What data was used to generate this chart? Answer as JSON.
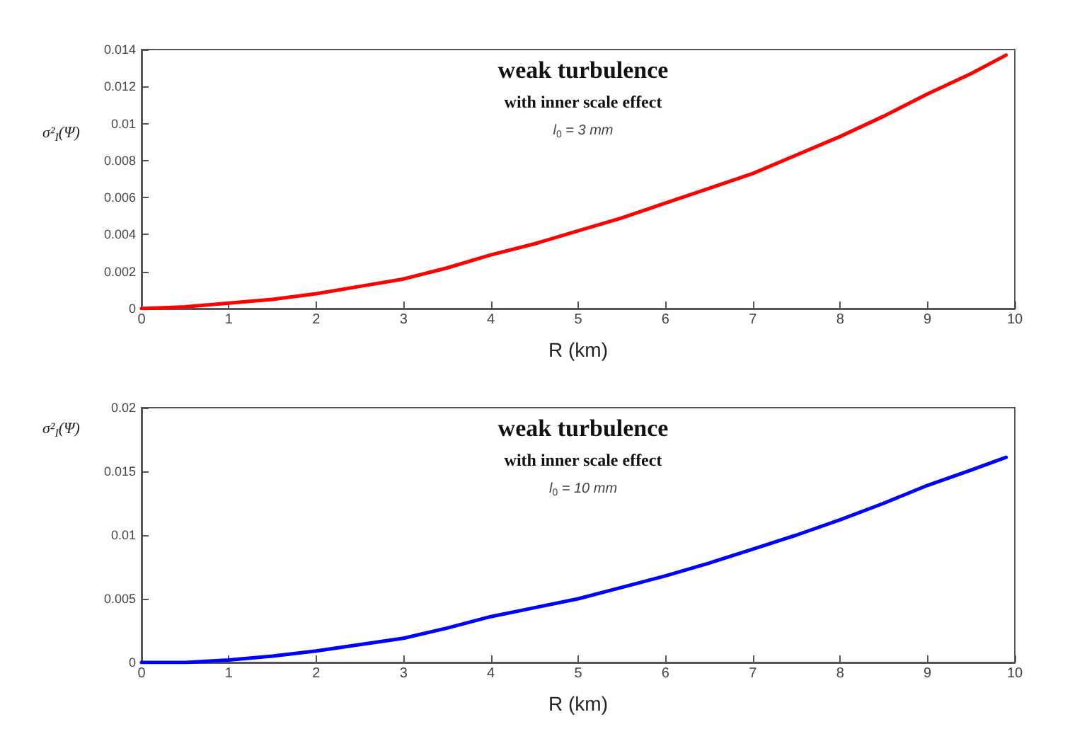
{
  "chart_data": [
    {
      "type": "line",
      "xlabel": "R (km)",
      "ylabel": "σ²$_{I}$(Ψ)",
      "annotations": [
        "weak turbulence",
        "with inner scale effect",
        "l$_{0}$ = 3 mm"
      ],
      "x": [
        0,
        0.5,
        1,
        1.5,
        2,
        2.5,
        3,
        3.5,
        4,
        4.5,
        5,
        5.5,
        6,
        6.5,
        7,
        7.5,
        8,
        8.5,
        9,
        9.5,
        9.9
      ],
      "series": [
        {
          "color": "#ff0000",
          "values": [
            0,
            0.0001,
            0.0003,
            0.0005,
            0.0008,
            0.0012,
            0.0016,
            0.0022,
            0.0029,
            0.0035,
            0.0042,
            0.0049,
            0.0057,
            0.0065,
            0.0073,
            0.0083,
            0.0093,
            0.0104,
            0.0116,
            0.0127,
            0.0137
          ]
        }
      ],
      "xlim": [
        0,
        10
      ],
      "xticks": [
        0,
        1,
        2,
        3,
        4,
        5,
        6,
        7,
        8,
        9,
        10
      ],
      "ylim": [
        0,
        0.014
      ],
      "yticks": [
        0,
        0.002,
        0.004,
        0.006,
        0.008,
        0.01,
        0.012,
        0.014
      ],
      "grid": false,
      "marker": "none",
      "line_style": "solid"
    },
    {
      "type": "line",
      "xlabel": "R (km)",
      "ylabel": "σ²$_{I}$(Ψ)",
      "annotations": [
        "weak turbulence",
        "with inner scale effect",
        "l$_{0}$ = 10 mm"
      ],
      "x": [
        0,
        0.5,
        1,
        1.5,
        2,
        2.5,
        3,
        3.5,
        4,
        4.5,
        5,
        5.5,
        6,
        6.5,
        7,
        7.5,
        8,
        8.5,
        9,
        9.5,
        9.9
      ],
      "series": [
        {
          "color": "#0000ff",
          "values": [
            0,
            0,
            0.0002,
            0.0005,
            0.0009,
            0.0014,
            0.0019,
            0.0027,
            0.0036,
            0.0043,
            0.005,
            0.0059,
            0.0068,
            0.0078,
            0.0089,
            0.01,
            0.0112,
            0.0125,
            0.0139,
            0.0151,
            0.0161
          ]
        }
      ],
      "xlim": [
        0,
        10
      ],
      "xticks": [
        0,
        1,
        2,
        3,
        4,
        5,
        6,
        7,
        8,
        9,
        10
      ],
      "ylim": [
        0,
        0.02
      ],
      "yticks": [
        0,
        0.005,
        0.01,
        0.015,
        0.02
      ],
      "grid": false,
      "marker": "none",
      "line_style": "solid"
    }
  ]
}
